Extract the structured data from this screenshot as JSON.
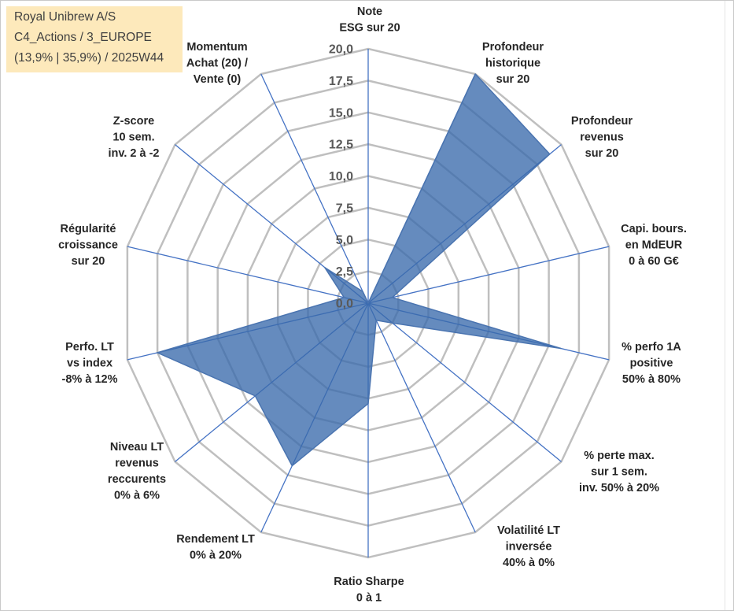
{
  "chart_data": {
    "type": "radar",
    "title_box": {
      "lines": [
        "Royal Unibrew A/S",
        "C4_Actions / 3_EUROPE",
        "(13,9% | 35,9%) / 2025W44"
      ]
    },
    "categories": [
      [
        "Note",
        "ESG sur 20"
      ],
      [
        "Profondeur",
        "historique",
        "sur 20"
      ],
      [
        "Profondeur",
        "revenus",
        "sur 20"
      ],
      [
        "Capi. bours.",
        "en MdEUR",
        "0 à 60 G€"
      ],
      [
        "% perfo 1A",
        "positive",
        "50% à 80%"
      ],
      [
        "% perte max.",
        "sur 1 sem.",
        "inv. 50% à 20%"
      ],
      [
        "Volatilité LT",
        "inversée",
        "40% à 0%"
      ],
      [
        "Ratio Sharpe",
        "0 à 1"
      ],
      [
        "Rendement LT",
        "0% à 20%"
      ],
      [
        "Niveau LT",
        "revenus",
        "reccurents",
        "0% à 6%"
      ],
      [
        "Perfo. LT",
        "vs index",
        "-8% à 12%"
      ],
      [
        "Régularité",
        "croissance",
        "sur 20"
      ],
      [
        "Z-score",
        "10 sem.",
        "inv. 2 à -2"
      ],
      [
        "Momentum",
        "Achat (20) /",
        "Vente (0)"
      ]
    ],
    "series": [
      {
        "values": [
          0,
          20,
          18.8,
          2,
          16,
          2.5,
          1.5,
          7.9,
          14.2,
          11.7,
          17.5,
          2,
          4.5,
          1
        ]
      }
    ],
    "rlim": [
      0,
      20
    ],
    "rstep": 2.5,
    "tick_labels": [
      "0,0",
      "2,5",
      "5,0",
      "7,5",
      "10,0",
      "12,5",
      "15,0",
      "17,5",
      "20,0"
    ],
    "grid": true,
    "legend": "none"
  },
  "colors": {
    "title_box_background": "#fde9bb",
    "title_text": "#404040",
    "series_fill": "#3a6aac",
    "series_stroke": "#4a74b0",
    "axis_spoke": "#4472c4",
    "grid_ring": "#bfbfbf",
    "tick_label": "#595959",
    "axis_label": "#262626"
  }
}
